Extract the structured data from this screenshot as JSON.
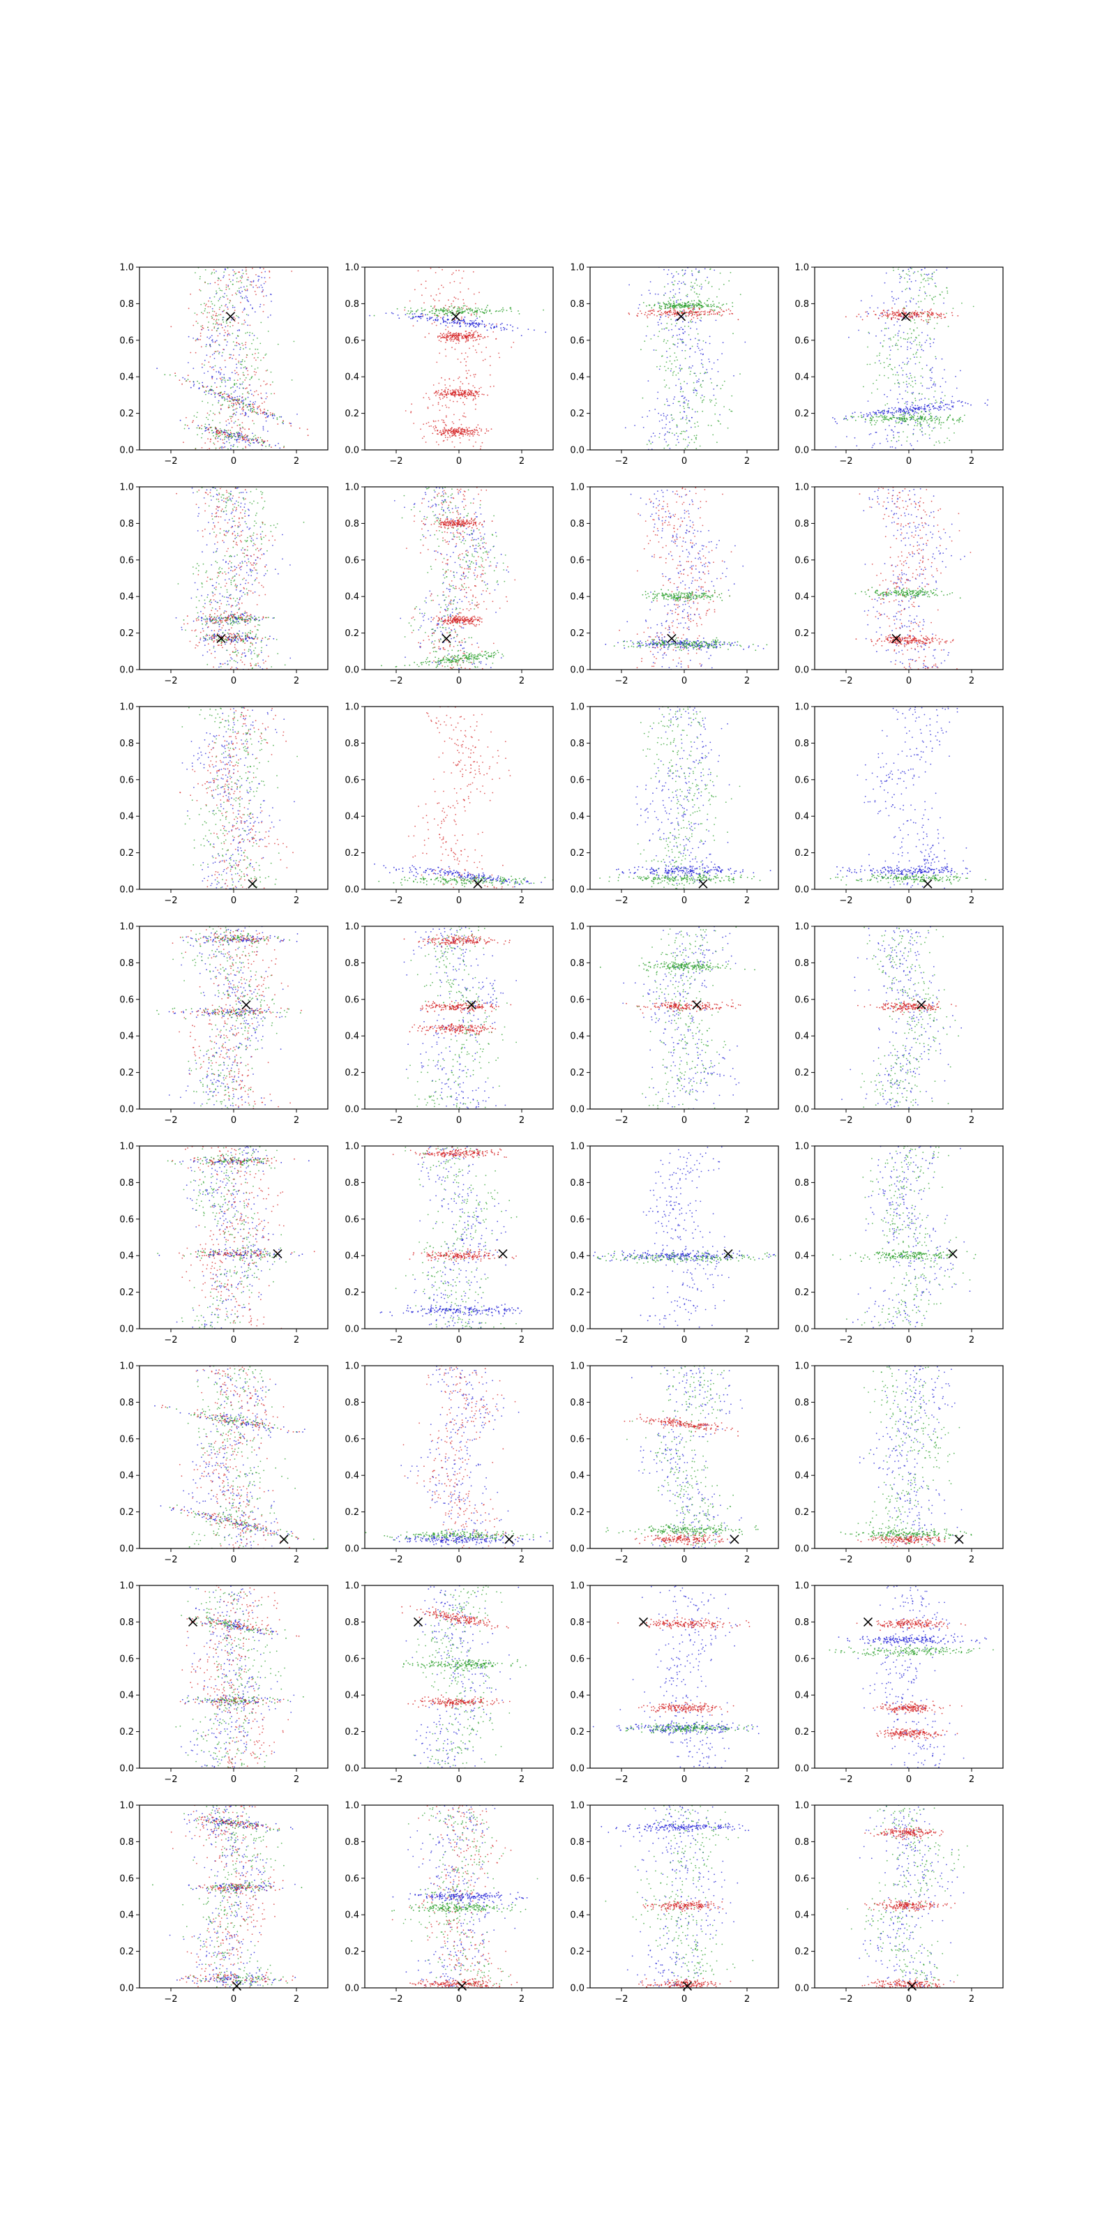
{
  "figure": {
    "description_hint": "4x8 grid of scatter subplots; each subplot shows red, green and blue point clouds with a black x marker",
    "series_colors": {
      "red": "#d62728",
      "green": "#2ca02c",
      "blue": "#1f1fd6",
      "marker": "#000000"
    }
  },
  "chart_data": {
    "type": "scatter",
    "grid": {
      "rows": 8,
      "cols": 4
    },
    "xlim": [
      -3,
      3
    ],
    "ylim": [
      0,
      1
    ],
    "xticks": [
      -2,
      0,
      2
    ],
    "xtick_labels": [
      "−2",
      "0",
      "2"
    ],
    "yticks": [
      0,
      0.2,
      0.4,
      0.6,
      0.8,
      1.0
    ],
    "ytick_labels": [
      "0.0",
      "0.2",
      "0.4",
      "0.6",
      "0.8",
      "1.0"
    ],
    "title": "",
    "xlabel": "",
    "ylabel": "",
    "series": [
      "red",
      "green",
      "blue"
    ],
    "rows": [
      {
        "marker": [
          -0.1,
          0.73
        ],
        "panels": [
          {
            "bands": [
              {
                "c": "mixed",
                "y": 0.27,
                "slope": -0.07,
                "w": 1.6
              },
              {
                "c": "mixed",
                "y": 0.08,
                "slope": -0.04,
                "w": 1.2
              }
            ],
            "diffuse": [
              "blue",
              "red",
              "green"
            ]
          },
          {
            "bands": [
              {
                "c": "green",
                "y": 0.76,
                "slope": 0.0,
                "w": 1.4
              },
              {
                "c": "blue",
                "y": 0.7,
                "slope": -0.02,
                "w": 1.6
              },
              {
                "c": "red",
                "y": 0.62,
                "slope": 0.0,
                "w": 0.6
              },
              {
                "c": "red",
                "y": 0.31,
                "slope": 0.0,
                "w": 0.6
              },
              {
                "c": "red",
                "y": 0.1,
                "slope": 0.0,
                "w": 0.6
              }
            ],
            "diffuse": [
              "red"
            ]
          },
          {
            "bands": [
              {
                "c": "red",
                "y": 0.75,
                "slope": 0.0,
                "w": 1.2
              },
              {
                "c": "green",
                "y": 0.79,
                "slope": 0.0,
                "w": 1.0
              }
            ],
            "diffuse": [
              "blue",
              "green"
            ]
          },
          {
            "bands": [
              {
                "c": "red",
                "y": 0.74,
                "slope": 0.0,
                "w": 1.0
              },
              {
                "c": "blue",
                "y": 0.22,
                "slope": 0.02,
                "w": 1.6
              },
              {
                "c": "green",
                "y": 0.17,
                "slope": 0.0,
                "w": 1.4
              }
            ],
            "diffuse": [
              "blue",
              "green"
            ]
          }
        ]
      },
      {
        "marker": [
          -0.4,
          0.17
        ],
        "panels": [
          {
            "bands": [
              {
                "c": "mixed",
                "y": 0.28,
                "slope": 0.0,
                "w": 0.9
              },
              {
                "c": "mixed",
                "y": 0.17,
                "slope": 0.0,
                "w": 0.9
              }
            ],
            "diffuse": [
              "blue",
              "green",
              "red"
            ]
          },
          {
            "bands": [
              {
                "c": "red",
                "y": 0.8,
                "slope": 0.0,
                "w": 0.6
              },
              {
                "c": "green",
                "y": 0.06,
                "slope": 0.02,
                "w": 1.2
              },
              {
                "c": "red",
                "y": 0.27,
                "slope": 0.0,
                "w": 0.6
              }
            ],
            "diffuse": [
              "blue",
              "green",
              "red"
            ]
          },
          {
            "bands": [
              {
                "c": "blue",
                "y": 0.14,
                "slope": 0.0,
                "w": 1.6
              },
              {
                "c": "green",
                "y": 0.14,
                "slope": 0.0,
                "w": 1.4
              },
              {
                "c": "green",
                "y": 0.4,
                "slope": 0.0,
                "w": 1.0
              }
            ],
            "diffuse": [
              "red",
              "blue"
            ]
          },
          {
            "bands": [
              {
                "c": "red",
                "y": 0.16,
                "slope": 0.0,
                "w": 0.9
              },
              {
                "c": "green",
                "y": 0.42,
                "slope": 0.0,
                "w": 1.0
              }
            ],
            "diffuse": [
              "blue",
              "red"
            ]
          }
        ]
      },
      {
        "marker": [
          0.6,
          0.03
        ],
        "panels": [
          {
            "bands": [],
            "diffuse": [
              "blue",
              "red",
              "green"
            ]
          },
          {
            "bands": [
              {
                "c": "blue",
                "y": 0.08,
                "slope": -0.02,
                "w": 1.8
              },
              {
                "c": "green",
                "y": 0.05,
                "slope": 0.0,
                "w": 1.8
              }
            ],
            "diffuse": [
              "red"
            ]
          },
          {
            "bands": [
              {
                "c": "blue",
                "y": 0.1,
                "slope": 0.0,
                "w": 1.6
              },
              {
                "c": "green",
                "y": 0.06,
                "slope": 0.0,
                "w": 1.6
              }
            ],
            "diffuse": [
              "blue",
              "green"
            ]
          },
          {
            "bands": [
              {
                "c": "blue",
                "y": 0.1,
                "slope": 0.0,
                "w": 1.6
              },
              {
                "c": "green",
                "y": 0.06,
                "slope": 0.0,
                "w": 1.6
              }
            ],
            "diffuse": [
              "blue"
            ]
          }
        ]
      },
      {
        "marker": [
          0.4,
          0.57
        ],
        "panels": [
          {
            "bands": [
              {
                "c": "mixed",
                "y": 0.93,
                "slope": 0.0,
                "w": 1.4
              },
              {
                "c": "mixed",
                "y": 0.53,
                "slope": 0.0,
                "w": 1.4
              }
            ],
            "diffuse": [
              "blue",
              "green",
              "red"
            ]
          },
          {
            "bands": [
              {
                "c": "red",
                "y": 0.92,
                "slope": 0.0,
                "w": 1.0
              },
              {
                "c": "red",
                "y": 0.56,
                "slope": 0.0,
                "w": 1.0
              },
              {
                "c": "red",
                "y": 0.44,
                "slope": 0.0,
                "w": 1.0
              }
            ],
            "diffuse": [
              "blue",
              "green"
            ]
          },
          {
            "bands": [
              {
                "c": "red",
                "y": 0.56,
                "slope": 0.0,
                "w": 1.2
              },
              {
                "c": "green",
                "y": 0.78,
                "slope": 0.0,
                "w": 1.2
              }
            ],
            "diffuse": [
              "blue",
              "green"
            ]
          },
          {
            "bands": [
              {
                "c": "red",
                "y": 0.56,
                "slope": 0.0,
                "w": 1.0
              }
            ],
            "diffuse": [
              "blue",
              "green"
            ]
          }
        ]
      },
      {
        "marker": [
          1.4,
          0.41
        ],
        "panels": [
          {
            "bands": [
              {
                "c": "mixed",
                "y": 0.92,
                "slope": 0.0,
                "w": 1.4
              },
              {
                "c": "mixed",
                "y": 0.41,
                "slope": 0.0,
                "w": 1.4
              }
            ],
            "diffuse": [
              "blue",
              "red",
              "green"
            ]
          },
          {
            "bands": [
              {
                "c": "red",
                "y": 0.96,
                "slope": 0.0,
                "w": 1.2
              },
              {
                "c": "red",
                "y": 0.4,
                "slope": 0.0,
                "w": 1.0
              },
              {
                "c": "blue",
                "y": 0.1,
                "slope": 0.0,
                "w": 1.6
              }
            ],
            "diffuse": [
              "blue",
              "green"
            ]
          },
          {
            "bands": [
              {
                "c": "green",
                "y": 0.39,
                "slope": 0.0,
                "w": 2.2
              },
              {
                "c": "blue",
                "y": 0.4,
                "slope": 0.0,
                "w": 2.2
              }
            ],
            "diffuse": [
              "blue"
            ]
          },
          {
            "bands": [
              {
                "c": "green",
                "y": 0.4,
                "slope": 0.0,
                "w": 1.4
              }
            ],
            "diffuse": [
              "blue",
              "green"
            ]
          }
        ]
      },
      {
        "marker": [
          1.6,
          0.05
        ],
        "panels": [
          {
            "bands": [
              {
                "c": "mixed",
                "y": 0.14,
                "slope": -0.04,
                "w": 1.8
              },
              {
                "c": "mixed",
                "y": 0.7,
                "slope": -0.03,
                "w": 1.6
              }
            ],
            "diffuse": [
              "blue",
              "green",
              "red"
            ]
          },
          {
            "bands": [
              {
                "c": "green",
                "y": 0.07,
                "slope": 0.0,
                "w": 1.8
              },
              {
                "c": "blue",
                "y": 0.05,
                "slope": 0.0,
                "w": 1.6
              }
            ],
            "diffuse": [
              "blue",
              "red"
            ]
          },
          {
            "bands": [
              {
                "c": "red",
                "y": 0.68,
                "slope": -0.02,
                "w": 1.2
              },
              {
                "c": "red",
                "y": 0.05,
                "slope": 0.0,
                "w": 1.0
              },
              {
                "c": "green",
                "y": 0.1,
                "slope": 0.0,
                "w": 1.6
              }
            ],
            "diffuse": [
              "blue",
              "green"
            ]
          },
          {
            "bands": [
              {
                "c": "red",
                "y": 0.05,
                "slope": 0.0,
                "w": 1.0
              },
              {
                "c": "green",
                "y": 0.08,
                "slope": 0.0,
                "w": 1.4
              }
            ],
            "diffuse": [
              "blue",
              "green"
            ]
          }
        ]
      },
      {
        "marker": [
          -1.3,
          0.8
        ],
        "panels": [
          {
            "bands": [
              {
                "c": "mixed",
                "y": 0.78,
                "slope": -0.03,
                "w": 1.2
              },
              {
                "c": "mixed",
                "y": 0.37,
                "slope": 0.0,
                "w": 1.4
              }
            ],
            "diffuse": [
              "blue",
              "green",
              "red"
            ]
          },
          {
            "bands": [
              {
                "c": "red",
                "y": 0.36,
                "slope": 0.0,
                "w": 1.0
              },
              {
                "c": "green",
                "y": 0.57,
                "slope": 0.0,
                "w": 1.4
              },
              {
                "c": "red",
                "y": 0.82,
                "slope": -0.03,
                "w": 1.0
              }
            ],
            "diffuse": [
              "blue",
              "green"
            ]
          },
          {
            "bands": [
              {
                "c": "red",
                "y": 0.79,
                "slope": 0.0,
                "w": 1.2
              },
              {
                "c": "red",
                "y": 0.33,
                "slope": 0.0,
                "w": 1.0
              },
              {
                "c": "blue",
                "y": 0.22,
                "slope": 0.0,
                "w": 1.6
              },
              {
                "c": "green",
                "y": 0.22,
                "slope": 0.0,
                "w": 1.4
              }
            ],
            "diffuse": [
              "blue"
            ]
          },
          {
            "bands": [
              {
                "c": "red",
                "y": 0.79,
                "slope": 0.0,
                "w": 1.0
              },
              {
                "c": "blue",
                "y": 0.7,
                "slope": 0.0,
                "w": 1.6
              },
              {
                "c": "green",
                "y": 0.64,
                "slope": 0.0,
                "w": 1.6
              },
              {
                "c": "red",
                "y": 0.33,
                "slope": 0.0,
                "w": 0.8
              },
              {
                "c": "red",
                "y": 0.19,
                "slope": 0.0,
                "w": 0.8
              }
            ],
            "diffuse": [
              "blue"
            ]
          }
        ]
      },
      {
        "marker": [
          0.1,
          0.01
        ],
        "panels": [
          {
            "bands": [
              {
                "c": "mixed",
                "y": 0.05,
                "slope": 0.0,
                "w": 1.4
              },
              {
                "c": "mixed",
                "y": 0.9,
                "slope": -0.02,
                "w": 1.2
              },
              {
                "c": "mixed",
                "y": 0.55,
                "slope": 0.0,
                "w": 1.2
              }
            ],
            "diffuse": [
              "blue",
              "green",
              "red"
            ]
          },
          {
            "bands": [
              {
                "c": "green",
                "y": 0.44,
                "slope": 0.0,
                "w": 1.4
              },
              {
                "c": "blue",
                "y": 0.5,
                "slope": 0.0,
                "w": 1.4
              },
              {
                "c": "red",
                "y": 0.02,
                "slope": 0.0,
                "w": 1.2
              }
            ],
            "diffuse": [
              "blue",
              "green",
              "red"
            ]
          },
          {
            "bands": [
              {
                "c": "red",
                "y": 0.45,
                "slope": 0.0,
                "w": 0.9
              },
              {
                "c": "red",
                "y": 0.02,
                "slope": 0.0,
                "w": 1.0
              },
              {
                "c": "blue",
                "y": 0.88,
                "slope": 0.0,
                "w": 1.6
              }
            ],
            "diffuse": [
              "blue",
              "green"
            ]
          },
          {
            "bands": [
              {
                "c": "red",
                "y": 0.45,
                "slope": 0.0,
                "w": 0.9
              },
              {
                "c": "red",
                "y": 0.02,
                "slope": 0.0,
                "w": 1.0
              },
              {
                "c": "red",
                "y": 0.85,
                "slope": 0.0,
                "w": 0.8
              }
            ],
            "diffuse": [
              "blue",
              "green"
            ]
          }
        ]
      }
    ]
  }
}
